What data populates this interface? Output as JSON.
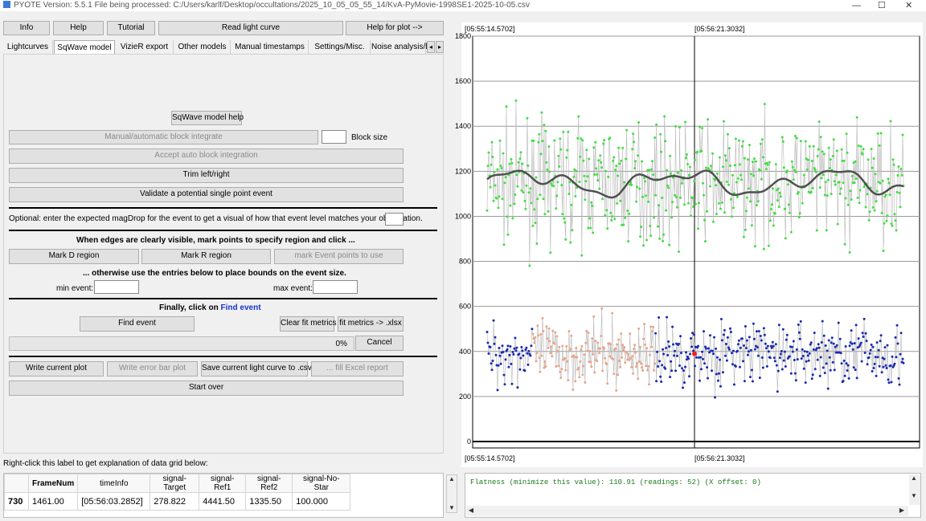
{
  "window": {
    "title": "PYOTE Version: 5.5.1  File being processed: C:/Users/karlf/Desktop/occultations/2025_10_05_05_55_14/KvA-PyMovie-1998SE1-2025-10-05.csv",
    "minimize": "—",
    "maximize": "☐",
    "close": "✕"
  },
  "top_buttons": {
    "info": "Info",
    "help": "Help",
    "tutorial": "Tutorial",
    "read_light_curve": "Read light curve",
    "help_for_plot": "Help for plot -->"
  },
  "tabs": [
    "Lightcurves",
    "SqWave model",
    "VizieR export",
    "Other models",
    "Manual timestamps",
    "Settings/Misc.",
    "Noise analysis/l"
  ],
  "tab_scroll": {
    "left": "◂",
    "right": "▸"
  },
  "sqwave": {
    "model_help": "SqWave model help",
    "block_integrate": "Manual/automatic block integrate",
    "block_size_label": "Block size",
    "block_size_value": "",
    "accept_auto": "Accept auto block integration",
    "trim": "Trim left/right",
    "validate": "Validate a potential single point event",
    "magdrop_label": "Optional: enter the expected magDrop for the event to get a visual of how that event level matches your observation.",
    "magdrop_value": "",
    "edges_heading": "When edges are clearly visible, mark points to specify region and click ...",
    "mark_d": "Mark D region",
    "mark_r": "Mark R region",
    "mark_event": "mark Event points to use",
    "otherwise_heading": "... otherwise use the entries below to place bounds on the event size.",
    "min_event_label": "min event:",
    "min_event_value": "",
    "max_event_label": "max event:",
    "max_event_value": "",
    "finally_prefix": "Finally, click on ",
    "finally_link": "Find event",
    "find_event": "Find event",
    "clear_fit": "Clear fit metrics",
    "fit_xlsx": "fit metrics -> .xlsx",
    "progress_text": "0%",
    "progress": 0,
    "cancel": "Cancel",
    "write_plot": "Write current plot",
    "write_error": "Write error bar plot",
    "save_csv": "Save current light curve to .csv",
    "fill_excel": "... fill Excel report",
    "start_over": "Start over"
  },
  "grid_label": "Right-click this label to get explanation of data grid below:",
  "data_grid": {
    "columns": [
      "",
      "FrameNum",
      "timeInfo",
      "signal-Target",
      "signal-Ref1",
      "signal-Ref2",
      "signal-No-Star"
    ],
    "rows": [
      [
        "730",
        "1461.00",
        "[05:56:03.2852]",
        "278.822",
        "4441.50",
        "1335.50",
        "100.000"
      ]
    ]
  },
  "console": {
    "text": "Flatness (minimize this value): 110.91 (readings: 52) (X offset: 0)"
  },
  "plot": {
    "top_left_time": "[05:55:14.5702]",
    "top_mid_time": "[05:56:21.3032]",
    "bottom_left_time": "[05:55:14.5702]",
    "bottom_mid_time": "[05:56:21.3032]",
    "colors": {
      "ref": "#44dd44",
      "target": "#1a2ab0",
      "baseline_region": "#e8a58a",
      "smooth": "#505050",
      "marker": "#ee2222"
    }
  },
  "chart_data": {
    "type": "scatter",
    "ylim": [
      0,
      1800
    ],
    "yticks": [
      "0",
      "200",
      "400",
      "600",
      "800",
      "1000",
      "1200",
      "1400",
      "1600",
      "1800"
    ],
    "series": [
      {
        "name": "",
        "color": "#44dd44",
        "mean": 1150,
        "spread": 230
      },
      {
        "name": "",
        "color": "#1a2ab0",
        "mean": 390,
        "spread": 130
      },
      {
        "name": "",
        "color": "#e8a58a",
        "mean": 420,
        "spread": 110
      }
    ]
  }
}
